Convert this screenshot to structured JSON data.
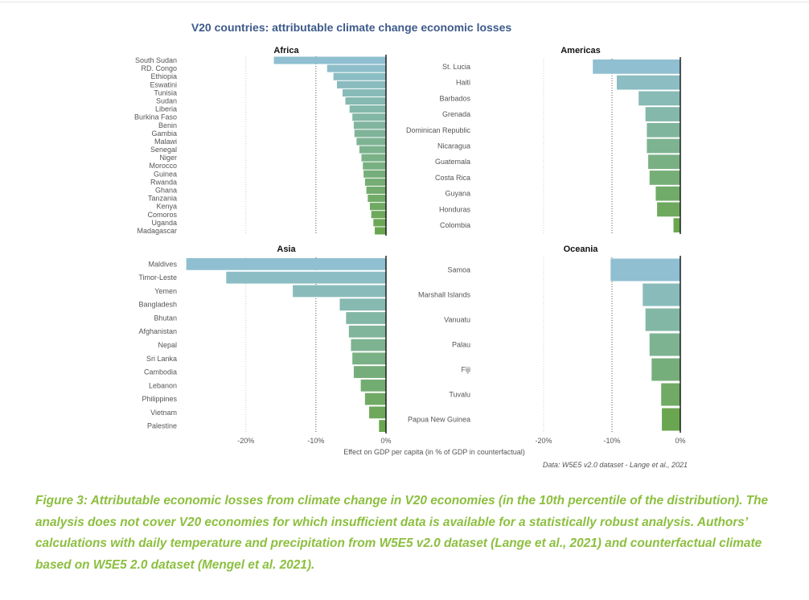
{
  "figure": {
    "title": "V20 countries: attributable climate change economic losses",
    "xlabel": "Effect on GDP per capita (in % of GDP in counterfactual)",
    "source": "Data: W5E5 v2.0 dataset - Lange et al., 2021",
    "colors": {
      "top": "#8fbfd0",
      "bottom": "#6aa650",
      "zero_line": "#000000",
      "ref_line": "#555555"
    }
  },
  "caption": "Figure 3: Attributable economic losses from climate change in V20 economies (in the 10th percentile of the distribution). The analysis does not cover V20 economies for which insufficient data is available for a statistically robust analysis. Authors’ calculations with daily temperature and precipitation from W5E5 v2.0 dataset (Lange et al., 2021) and counterfactual climate based on W5E5 2.0 dataset (Mengel et al. 2021).",
  "chart_data": [
    {
      "type": "bar",
      "orientation": "horizontal",
      "title": "Africa",
      "xlim": [
        -28,
        0
      ],
      "categories": [
        "South Sudan",
        "RD. Congo",
        "Ethiopia",
        "Eswatini",
        "Tunisia",
        "Sudan",
        "Liberia",
        "Burkina Faso",
        "Benin",
        "Gambia",
        "Malawi",
        "Senegal",
        "Niger",
        "Morocco",
        "Guinea",
        "Rwanda",
        "Ghana",
        "Tanzania",
        "Kenya",
        "Comoros",
        "Uganda",
        "Madagascar"
      ],
      "values": [
        -16,
        -8.4,
        -7.5,
        -7.0,
        -6.2,
        -5.8,
        -5.2,
        -4.8,
        -4.6,
        -4.5,
        -4.2,
        -3.8,
        -3.5,
        -3.3,
        -3.2,
        -3.0,
        -2.8,
        -2.6,
        -2.3,
        -2.1,
        -1.8,
        -1.6
      ]
    },
    {
      "type": "bar",
      "orientation": "horizontal",
      "title": "Americas",
      "xlim": [
        -20,
        0
      ],
      "categories": [
        "St. Lucia",
        "Haiti",
        "Barbados",
        "Grenada",
        "Dominican Republic",
        "Nicaragua",
        "Guatemala",
        "Costa Rica",
        "Guyana",
        "Honduras",
        "Colombia"
      ],
      "values": [
        -12.8,
        -9.3,
        -6.1,
        -5.1,
        -4.9,
        -4.9,
        -4.7,
        -4.5,
        -3.6,
        -3.4,
        -1.0
      ]
    },
    {
      "type": "bar",
      "orientation": "horizontal",
      "title": "Asia",
      "xlim": [
        -28,
        0
      ],
      "categories": [
        "Maldives",
        "Timor-Leste",
        "Yemen",
        "Bangladesh",
        "Bhutan",
        "Afghanistan",
        "Nepal",
        "Sri Lanka",
        "Cambodia",
        "Lebanon",
        "Philippines",
        "Vietnam",
        "Palestine"
      ],
      "values": [
        -28.5,
        -22.8,
        -13.3,
        -6.6,
        -5.7,
        -5.3,
        -5.0,
        -4.8,
        -4.6,
        -3.6,
        -3.0,
        -2.4,
        -1.0
      ]
    },
    {
      "type": "bar",
      "orientation": "horizontal",
      "title": "Oceania",
      "xlim": [
        -20,
        0
      ],
      "categories": [
        "Samoa",
        "Marshall Islands",
        "Vanuatu",
        "Palau",
        "Fiji",
        "Tuvalu",
        "Papua New Guinea"
      ],
      "values": [
        -10.2,
        -5.5,
        -5.1,
        -4.5,
        -4.2,
        -2.8,
        -2.7
      ]
    }
  ],
  "axes": {
    "left": {
      "ticks": [
        -20,
        -10,
        0
      ],
      "tick_labels": [
        "-20%",
        "-10%",
        "0%"
      ],
      "ref_line": -10
    },
    "right": {
      "ticks": [
        -20,
        -10,
        0
      ],
      "tick_labels": [
        "-20%",
        "-10%",
        "0%"
      ],
      "ref_line": -10
    }
  }
}
